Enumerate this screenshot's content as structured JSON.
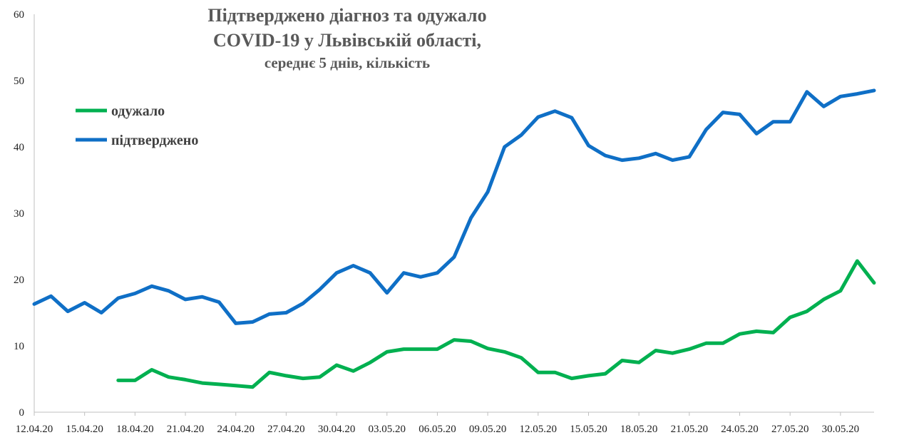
{
  "chart_data": {
    "type": "line",
    "title_lines": [
      "Підтверджено діагноз та одужало",
      "COVID-19 у Львівській області,",
      "середнє 5 днів, кількість"
    ],
    "xlabel": "",
    "ylabel": "",
    "ylim": [
      0,
      60
    ],
    "yticks": [
      0,
      10,
      20,
      30,
      40,
      50,
      60
    ],
    "x": [
      "12.04.20",
      "13.04.20",
      "14.04.20",
      "15.04.20",
      "16.04.20",
      "17.04.20",
      "18.04.20",
      "19.04.20",
      "20.04.20",
      "21.04.20",
      "22.04.20",
      "23.04.20",
      "24.04.20",
      "25.04.20",
      "26.04.20",
      "27.04.20",
      "28.04.20",
      "29.04.20",
      "30.04.20",
      "01.05.20",
      "02.05.20",
      "03.05.20",
      "04.05.20",
      "05.05.20",
      "06.05.20",
      "07.05.20",
      "08.05.20",
      "09.05.20",
      "10.05.20",
      "11.05.20",
      "12.05.20",
      "13.05.20",
      "14.05.20",
      "15.05.20",
      "16.05.20",
      "17.05.20",
      "18.05.20",
      "19.05.20",
      "20.05.20",
      "21.05.20",
      "22.05.20",
      "23.05.20",
      "24.05.20",
      "25.05.20",
      "26.05.20",
      "27.05.20",
      "28.05.20",
      "29.05.20",
      "30.05.20",
      "31.05.20",
      "01.06.20"
    ],
    "x_tick_labels": [
      "12.04.20",
      "15.04.20",
      "18.04.20",
      "21.04.20",
      "24.04.20",
      "27.04.20",
      "30.04.20",
      "03.05.20",
      "06.05.20",
      "09.05.20",
      "12.05.20",
      "15.05.20",
      "18.05.20",
      "21.05.20",
      "24.05.20",
      "27.05.20",
      "30.05.20"
    ],
    "grid": false,
    "legend_position": "top-left",
    "series": [
      {
        "name": "одужало",
        "color": "#00b050",
        "values": [
          null,
          null,
          null,
          null,
          null,
          4.8,
          4.8,
          6.4,
          5.3,
          4.9,
          4.4,
          4.2,
          4.0,
          3.8,
          6.0,
          5.5,
          5.1,
          5.3,
          7.1,
          6.2,
          7.5,
          9.1,
          9.5,
          9.5,
          9.5,
          10.9,
          10.7,
          9.6,
          9.1,
          8.2,
          6.0,
          6.0,
          5.1,
          5.5,
          5.8,
          7.8,
          7.5,
          9.3,
          8.9,
          9.5,
          10.4,
          10.4,
          11.8,
          12.2,
          12.0,
          14.3,
          15.2,
          17.0,
          18.3,
          22.8,
          19.5
        ]
      },
      {
        "name": "підтверджено",
        "color": "#0f6fc6",
        "values": [
          16.3,
          17.5,
          15.2,
          16.5,
          15.0,
          17.2,
          17.9,
          19.0,
          18.3,
          17.0,
          17.4,
          16.6,
          13.4,
          13.6,
          14.8,
          15.0,
          16.4,
          18.5,
          21.0,
          22.1,
          21.0,
          18.0,
          21.0,
          20.4,
          21.0,
          23.4,
          29.3,
          33.2,
          40.0,
          41.8,
          44.5,
          45.4,
          44.4,
          40.2,
          38.7,
          38.0,
          38.3,
          39.0,
          38.0,
          38.5,
          42.6,
          45.2,
          44.9,
          42.0,
          43.8,
          43.8,
          48.3,
          46.1,
          47.6,
          48.0,
          48.5
        ]
      }
    ]
  }
}
